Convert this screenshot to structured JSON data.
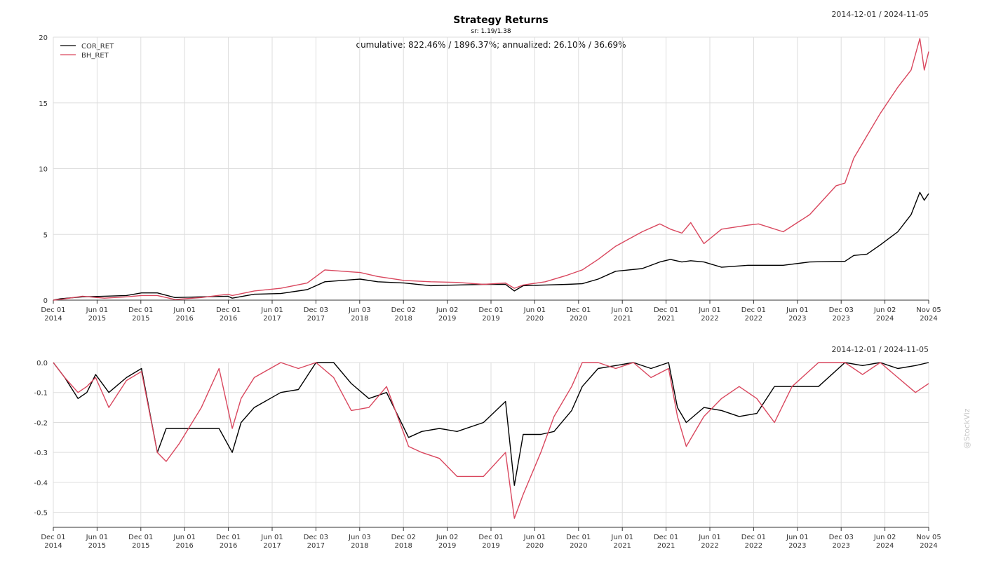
{
  "chart_data": [
    {
      "type": "line",
      "title": "Strategy Returns",
      "subtitle": "sr: 1.19/1.38",
      "annotation": "cumulative: 822.46% / 1896.37%; annualized: 26.10% / 36.69%",
      "date_range": "2014-12-01 / 2024-11-05",
      "ylim": [
        0,
        20
      ],
      "y_ticks": [
        "0",
        "5",
        "10",
        "15",
        "20"
      ],
      "x_ticks": [
        [
          "Dec 01",
          "2014"
        ],
        [
          "Jun 01",
          "2015"
        ],
        [
          "Dec 01",
          "2015"
        ],
        [
          "Jun 01",
          "2016"
        ],
        [
          "Dec 01",
          "2016"
        ],
        [
          "Jun 01",
          "2017"
        ],
        [
          "Dec 03",
          "2017"
        ],
        [
          "Jun 03",
          "2018"
        ],
        [
          "Dec 02",
          "2018"
        ],
        [
          "Jun 02",
          "2019"
        ],
        [
          "Dec 01",
          "2019"
        ],
        [
          "Jun 01",
          "2020"
        ],
        [
          "Dec 01",
          "2020"
        ],
        [
          "Jun 01",
          "2021"
        ],
        [
          "Dec 01",
          "2021"
        ],
        [
          "Jun 01",
          "2022"
        ],
        [
          "Dec 01",
          "2022"
        ],
        [
          "Jun 01",
          "2023"
        ],
        [
          "Dec 03",
          "2023"
        ],
        [
          "Jun 02",
          "2024"
        ],
        [
          "Nov 05",
          "2024"
        ]
      ],
      "grid": true,
      "legend": "top-left",
      "series": [
        {
          "name": "COR_RET",
          "color": "#000000",
          "x": [
            2014.92,
            2015.0,
            2015.25,
            2015.5,
            2015.75,
            2015.92,
            2016.1,
            2016.3,
            2016.6,
            2016.9,
            2016.95,
            2017.2,
            2017.5,
            2017.8,
            2018.0,
            2018.4,
            2018.6,
            2018.9,
            2019.2,
            2019.5,
            2019.8,
            2020.05,
            2020.15,
            2020.25,
            2020.5,
            2020.75,
            2020.92,
            2021.1,
            2021.3,
            2021.6,
            2021.8,
            2021.92,
            2022.05,
            2022.15,
            2022.3,
            2022.5,
            2022.8,
            2022.92,
            2023.2,
            2023.5,
            2023.8,
            2023.9,
            2024.0,
            2024.15,
            2024.3,
            2024.5,
            2024.65,
            2024.75,
            2024.8,
            2024.85
          ],
          "y": [
            0.0,
            0.1,
            0.25,
            0.3,
            0.35,
            0.55,
            0.55,
            0.2,
            0.25,
            0.3,
            0.15,
            0.45,
            0.5,
            0.8,
            1.4,
            1.6,
            1.4,
            1.3,
            1.1,
            1.15,
            1.2,
            1.2,
            0.7,
            1.1,
            1.15,
            1.2,
            1.25,
            1.6,
            2.2,
            2.4,
            2.9,
            3.1,
            2.9,
            3.0,
            2.9,
            2.5,
            2.65,
            2.65,
            2.65,
            2.9,
            2.95,
            2.95,
            3.4,
            3.5,
            4.2,
            5.2,
            6.5,
            8.2,
            7.6,
            8.1
          ]
        },
        {
          "name": "BH_RET",
          "color": "#d9475e",
          "x": [
            2014.92,
            2015.0,
            2015.25,
            2015.5,
            2015.75,
            2015.92,
            2016.1,
            2016.3,
            2016.6,
            2016.9,
            2016.95,
            2017.2,
            2017.5,
            2017.8,
            2018.0,
            2018.4,
            2018.6,
            2018.9,
            2019.2,
            2019.5,
            2019.8,
            2020.05,
            2020.15,
            2020.25,
            2020.5,
            2020.75,
            2020.92,
            2021.1,
            2021.3,
            2021.6,
            2021.8,
            2021.92,
            2022.05,
            2022.15,
            2022.3,
            2022.5,
            2022.8,
            2022.92,
            2023.2,
            2023.5,
            2023.8,
            2023.9,
            2024.0,
            2024.15,
            2024.3,
            2024.5,
            2024.65,
            2024.75,
            2024.8,
            2024.85
          ],
          "y": [
            0.0,
            0.05,
            0.3,
            0.15,
            0.25,
            0.35,
            0.35,
            0.05,
            0.2,
            0.45,
            0.35,
            0.7,
            0.9,
            1.3,
            2.3,
            2.1,
            1.8,
            1.5,
            1.4,
            1.35,
            1.2,
            1.3,
            0.9,
            1.15,
            1.4,
            1.9,
            2.3,
            3.1,
            4.1,
            5.2,
            5.8,
            5.4,
            5.1,
            5.9,
            4.3,
            5.4,
            5.7,
            5.8,
            5.2,
            6.5,
            8.7,
            8.9,
            10.8,
            12.5,
            14.2,
            16.2,
            17.5,
            19.9,
            17.5,
            18.9
          ]
        }
      ]
    },
    {
      "type": "line",
      "date_range": "2014-12-01 / 2024-11-05",
      "ylim": [
        -0.55,
        0.0
      ],
      "y_ticks": [
        "0.0",
        "-0.1",
        "-0.2",
        "-0.3",
        "-0.4",
        "-0.5"
      ],
      "x_ticks": [
        [
          "Dec 01",
          "2014"
        ],
        [
          "Jun 01",
          "2015"
        ],
        [
          "Dec 01",
          "2015"
        ],
        [
          "Jun 01",
          "2016"
        ],
        [
          "Dec 01",
          "2016"
        ],
        [
          "Jun 01",
          "2017"
        ],
        [
          "Dec 03",
          "2017"
        ],
        [
          "Jun 03",
          "2018"
        ],
        [
          "Dec 02",
          "2018"
        ],
        [
          "Jun 02",
          "2019"
        ],
        [
          "Dec 01",
          "2019"
        ],
        [
          "Jun 01",
          "2020"
        ],
        [
          "Dec 01",
          "2020"
        ],
        [
          "Jun 01",
          "2021"
        ],
        [
          "Dec 01",
          "2021"
        ],
        [
          "Jun 01",
          "2022"
        ],
        [
          "Dec 01",
          "2022"
        ],
        [
          "Jun 01",
          "2023"
        ],
        [
          "Dec 03",
          "2023"
        ],
        [
          "Jun 02",
          "2024"
        ],
        [
          "Nov 05",
          "2024"
        ]
      ],
      "grid": true,
      "series": [
        {
          "color": "#000000",
          "x": [
            2014.92,
            2015.05,
            2015.2,
            2015.3,
            2015.4,
            2015.55,
            2015.75,
            2015.92,
            2016.1,
            2016.2,
            2016.35,
            2016.6,
            2016.8,
            2016.95,
            2017.05,
            2017.2,
            2017.5,
            2017.7,
            2017.9,
            2018.1,
            2018.3,
            2018.5,
            2018.7,
            2018.95,
            2019.1,
            2019.3,
            2019.5,
            2019.8,
            2020.05,
            2020.15,
            2020.25,
            2020.45,
            2020.6,
            2020.8,
            2020.92,
            2021.1,
            2021.3,
            2021.5,
            2021.7,
            2021.9,
            2022.0,
            2022.1,
            2022.3,
            2022.5,
            2022.7,
            2022.9,
            2023.1,
            2023.3,
            2023.6,
            2023.9,
            2024.1,
            2024.3,
            2024.5,
            2024.7,
            2024.85
          ],
          "y": [
            0.0,
            -0.05,
            -0.12,
            -0.1,
            -0.04,
            -0.1,
            -0.05,
            -0.02,
            -0.3,
            -0.22,
            -0.22,
            -0.22,
            -0.22,
            -0.3,
            -0.2,
            -0.15,
            -0.1,
            -0.09,
            0.0,
            0.0,
            -0.07,
            -0.12,
            -0.1,
            -0.25,
            -0.23,
            -0.22,
            -0.23,
            -0.2,
            -0.13,
            -0.41,
            -0.24,
            -0.24,
            -0.23,
            -0.16,
            -0.08,
            -0.02,
            -0.01,
            0.0,
            -0.02,
            0.0,
            -0.15,
            -0.2,
            -0.15,
            -0.16,
            -0.18,
            -0.17,
            -0.08,
            -0.08,
            -0.08,
            0.0,
            -0.01,
            0.0,
            -0.02,
            -0.01,
            0.0
          ]
        },
        {
          "color": "#d9475e",
          "x": [
            2014.92,
            2015.05,
            2015.2,
            2015.3,
            2015.4,
            2015.55,
            2015.75,
            2015.92,
            2016.1,
            2016.2,
            2016.35,
            2016.6,
            2016.8,
            2016.95,
            2017.05,
            2017.2,
            2017.5,
            2017.7,
            2017.9,
            2018.1,
            2018.3,
            2018.5,
            2018.7,
            2018.95,
            2019.1,
            2019.3,
            2019.5,
            2019.8,
            2020.05,
            2020.15,
            2020.25,
            2020.45,
            2020.6,
            2020.8,
            2020.92,
            2021.1,
            2021.3,
            2021.5,
            2021.7,
            2021.9,
            2022.0,
            2022.1,
            2022.3,
            2022.5,
            2022.7,
            2022.9,
            2023.1,
            2023.3,
            2023.6,
            2023.9,
            2024.1,
            2024.3,
            2024.5,
            2024.7,
            2024.85
          ],
          "y": [
            0.0,
            -0.05,
            -0.1,
            -0.08,
            -0.05,
            -0.15,
            -0.06,
            -0.03,
            -0.3,
            -0.33,
            -0.27,
            -0.15,
            -0.02,
            -0.22,
            -0.12,
            -0.05,
            0.0,
            -0.02,
            0.0,
            -0.05,
            -0.16,
            -0.15,
            -0.08,
            -0.28,
            -0.3,
            -0.32,
            -0.38,
            -0.38,
            -0.3,
            -0.52,
            -0.44,
            -0.3,
            -0.18,
            -0.08,
            0.0,
            0.0,
            -0.02,
            0.0,
            -0.05,
            -0.02,
            -0.18,
            -0.28,
            -0.18,
            -0.12,
            -0.08,
            -0.12,
            -0.2,
            -0.08,
            0.0,
            0.0,
            -0.04,
            0.0,
            -0.05,
            -0.1,
            -0.07
          ]
        }
      ]
    }
  ],
  "watermark": "@StockViz"
}
